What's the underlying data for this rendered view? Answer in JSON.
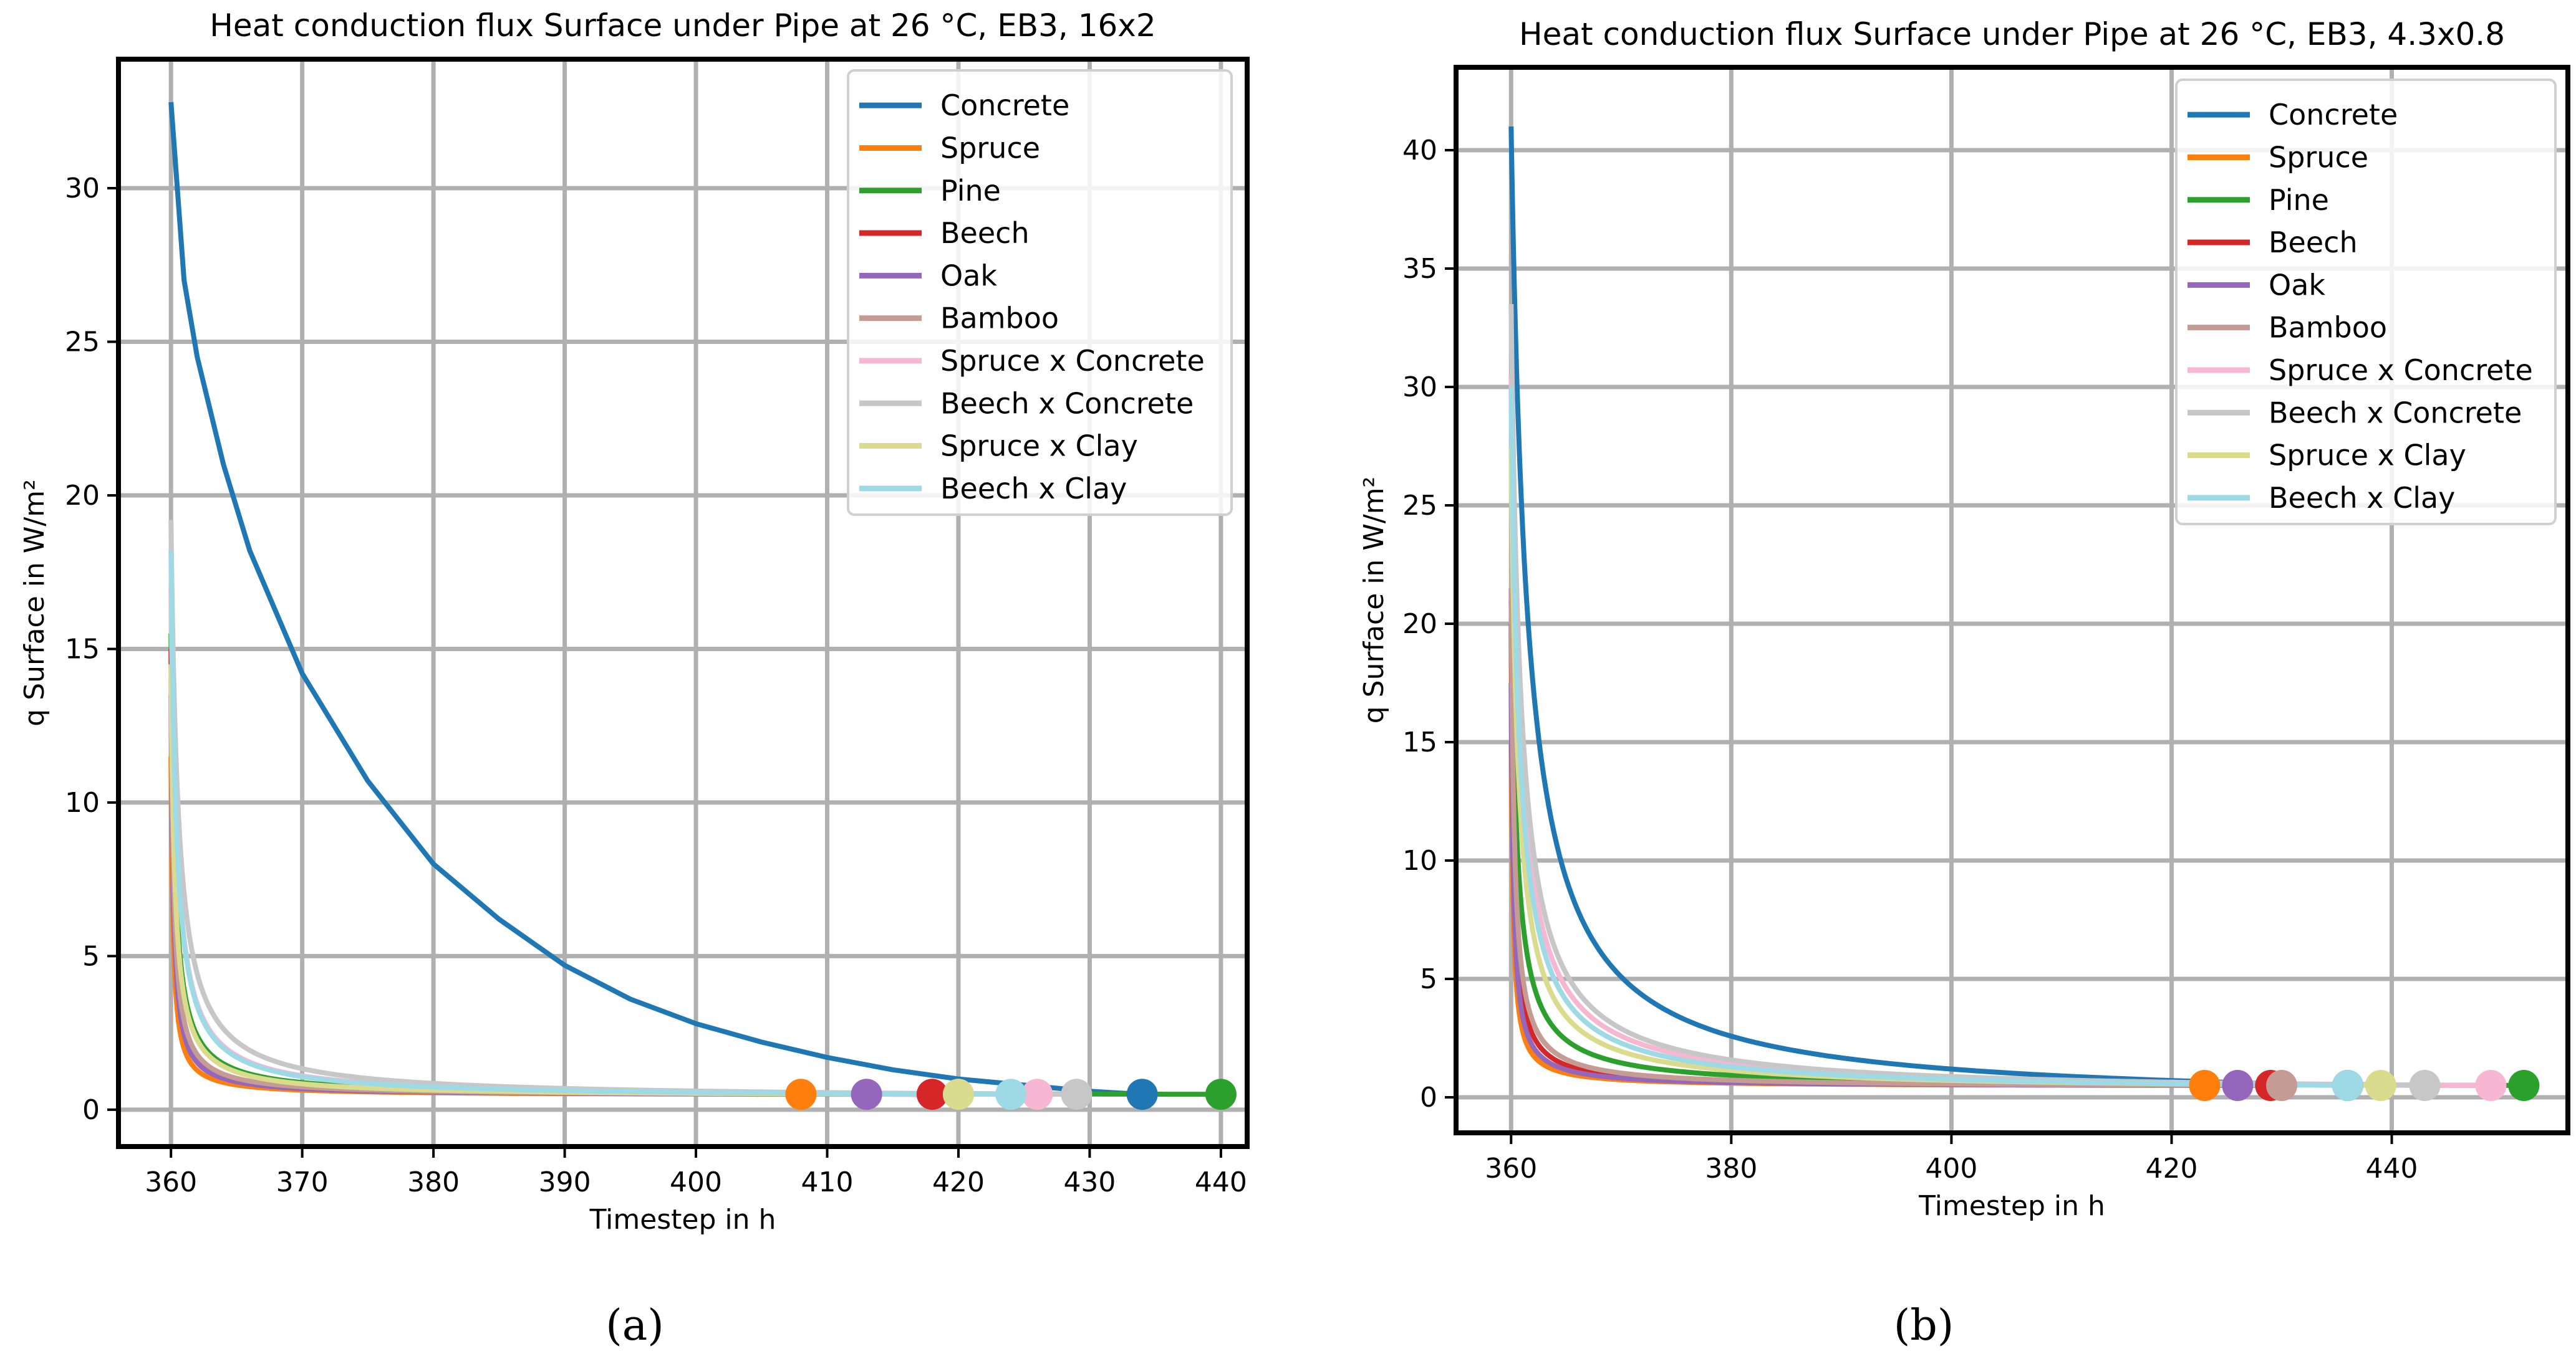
{
  "chart_data": [
    {
      "panel_label": "(a)",
      "type": "line",
      "title": "Heat conduction flux Surface under Pipe at 26 °C, EB3, 16x2",
      "xlabel": "Timestep in h",
      "ylabel": "q Surface  in W/m²",
      "xlim": [
        356,
        442
      ],
      "ylim": [
        -1.2,
        34.2
      ],
      "xticks": [
        360,
        370,
        380,
        390,
        400,
        410,
        420,
        430,
        440
      ],
      "yticks": [
        0,
        5,
        10,
        15,
        20,
        25,
        30
      ],
      "grid": true,
      "legend_position": "top-right",
      "series": [
        {
          "name": "Concrete",
          "color": "#1f77b4",
          "t0": 360,
          "y0": 32.8,
          "y_end": 0.5,
          "x_end": 434,
          "shape": 2.0,
          "points": [
            [
              360,
              32.8
            ],
            [
              361,
              27
            ],
            [
              362,
              24.5
            ],
            [
              364,
              21
            ],
            [
              366,
              18.2
            ],
            [
              370,
              14.2
            ],
            [
              375,
              10.7
            ],
            [
              380,
              8.0
            ],
            [
              385,
              6.2
            ],
            [
              390,
              4.7
            ],
            [
              395,
              3.6
            ],
            [
              400,
              2.8
            ],
            [
              405,
              2.2
            ],
            [
              410,
              1.7
            ],
            [
              415,
              1.3
            ],
            [
              420,
              1.0
            ],
            [
              425,
              0.8
            ],
            [
              430,
              0.6
            ],
            [
              434,
              0.5
            ]
          ]
        },
        {
          "name": "Spruce",
          "color": "#ff7f0e",
          "t0": 360,
          "y0": 11.5,
          "y_end": 0.5,
          "x_end": 408,
          "shape": 0.16
        },
        {
          "name": "Pine",
          "color": "#2ca02c",
          "t0": 360,
          "y0": 15.5,
          "y_end": 0.5,
          "x_end": 440,
          "shape": 0.3
        },
        {
          "name": "Beech",
          "color": "#d62728",
          "t0": 360,
          "y0": 15.0,
          "y_end": 0.5,
          "x_end": 418,
          "shape": 0.2
        },
        {
          "name": "Oak",
          "color": "#9467bd",
          "t0": 360,
          "y0": 13.5,
          "y_end": 0.5,
          "x_end": 413,
          "shape": 0.18
        },
        {
          "name": "Bamboo",
          "color": "#c49c94",
          "t0": 360,
          "y0": 14.0,
          "y_end": 0.5,
          "x_end": 420,
          "shape": 0.22
        },
        {
          "name": "Spruce x Concrete",
          "color": "#f7b6d2",
          "t0": 360,
          "y0": 17.0,
          "y_end": 0.5,
          "x_end": 426,
          "shape": 0.45
        },
        {
          "name": "Beech x Concrete",
          "color": "#c7c7c7",
          "t0": 360,
          "y0": 19.2,
          "y_end": 0.5,
          "x_end": 429,
          "shape": 0.55
        },
        {
          "name": "Spruce x Clay",
          "color": "#dbdb8d",
          "t0": 360,
          "y0": 14.5,
          "y_end": 0.5,
          "x_end": 420,
          "shape": 0.3
        },
        {
          "name": "Beech x Clay",
          "color": "#9edae5",
          "t0": 360,
          "y0": 18.2,
          "y_end": 0.5,
          "x_end": 424,
          "shape": 0.4
        }
      ]
    },
    {
      "panel_label": "(b)",
      "type": "line",
      "title": "Heat conduction flux Surface under Pipe at 26 °C, EB3, 4.3x0.8",
      "xlabel": "Timestep in h",
      "ylabel": "q Surface  in W/m²",
      "xlim": [
        355,
        456
      ],
      "ylim": [
        -1.5,
        43.5
      ],
      "xticks": [
        360,
        380,
        400,
        420,
        440
      ],
      "yticks": [
        0,
        5,
        10,
        15,
        20,
        25,
        30,
        35,
        40
      ],
      "grid": true,
      "legend_position": "top-right",
      "series": [
        {
          "name": "Concrete",
          "color": "#1f77b4",
          "t0": 360,
          "y0": 41.0,
          "y_end": 0.5,
          "x_end": 436,
          "shape": 1.5
        },
        {
          "name": "Spruce",
          "color": "#ff7f0e",
          "t0": 360,
          "y0": 15.0,
          "y_end": 0.5,
          "x_end": 423,
          "shape": 0.2
        },
        {
          "name": "Pine",
          "color": "#2ca02c",
          "t0": 360,
          "y0": 21.0,
          "y_end": 0.5,
          "x_end": 452,
          "shape": 0.55
        },
        {
          "name": "Beech",
          "color": "#d62728",
          "t0": 360,
          "y0": 20.0,
          "y_end": 0.5,
          "x_end": 429,
          "shape": 0.25
        },
        {
          "name": "Oak",
          "color": "#9467bd",
          "t0": 360,
          "y0": 17.5,
          "y_end": 0.5,
          "x_end": 426,
          "shape": 0.22
        },
        {
          "name": "Bamboo",
          "color": "#c49c94",
          "t0": 360,
          "y0": 21.5,
          "y_end": 0.5,
          "x_end": 430,
          "shape": 0.3
        },
        {
          "name": "Spruce x Concrete",
          "color": "#f7b6d2",
          "t0": 360,
          "y0": 30.5,
          "y_end": 0.5,
          "x_end": 449,
          "shape": 0.85
        },
        {
          "name": "Beech x Concrete",
          "color": "#c7c7c7",
          "t0": 360,
          "y0": 33.5,
          "y_end": 0.5,
          "x_end": 443,
          "shape": 0.9
        },
        {
          "name": "Spruce x Clay",
          "color": "#dbdb8d",
          "t0": 360,
          "y0": 27.5,
          "y_end": 0.5,
          "x_end": 439,
          "shape": 0.65
        },
        {
          "name": "Beech x Clay",
          "color": "#9edae5",
          "t0": 360,
          "y0": 30.0,
          "y_end": 0.5,
          "x_end": 436,
          "shape": 0.75
        }
      ]
    }
  ]
}
